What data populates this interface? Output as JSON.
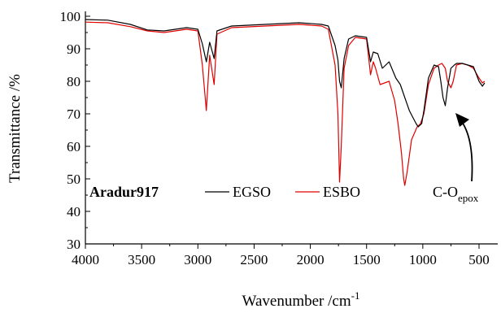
{
  "chart_data": {
    "type": "line",
    "title": "",
    "xlabel": "Wavenumber /cm",
    "xlabel_superscript": "-1",
    "ylabel": "Transmittance /%",
    "xlim": [
      4000,
      450
    ],
    "ylim": [
      30,
      100
    ],
    "x_reversed": true,
    "x_ticks": [
      4000,
      3500,
      3000,
      2500,
      2000,
      1500,
      1000,
      500
    ],
    "y_ticks": [
      30,
      40,
      50,
      60,
      70,
      80,
      90,
      100
    ],
    "grid": false,
    "legend": {
      "placement": "bottom-left",
      "title": "Aradur917",
      "entries": [
        "EGSO",
        "ESBO"
      ]
    },
    "annotation": {
      "text": "C-O",
      "subscript": "epox",
      "target": [
        800,
        72
      ]
    },
    "series": [
      {
        "name": "EGSO",
        "color": "#000000",
        "x": [
          4000,
          3800,
          3600,
          3450,
          3300,
          3100,
          3000,
          2960,
          2925,
          2895,
          2855,
          2830,
          2700,
          2400,
          2100,
          1900,
          1840,
          1780,
          1755,
          1740,
          1725,
          1700,
          1660,
          1600,
          1500,
          1465,
          1440,
          1400,
          1360,
          1300,
          1240,
          1200,
          1160,
          1120,
          1090,
          1060,
          1040,
          1010,
          990,
          950,
          900,
          860,
          840,
          820,
          800,
          780,
          750,
          720,
          700,
          650,
          600,
          550,
          500,
          470,
          450
        ],
        "y": [
          99.0,
          98.8,
          97.5,
          95.8,
          95.5,
          96.5,
          96.0,
          91.5,
          86.0,
          92.0,
          87.0,
          95.5,
          97.0,
          97.5,
          98.0,
          97.5,
          97.0,
          91.0,
          86.5,
          80.0,
          78.0,
          87.0,
          93.0,
          94.0,
          93.5,
          86.0,
          89.0,
          88.5,
          84.0,
          86.0,
          81.0,
          79.0,
          75.0,
          71.0,
          69.0,
          67.0,
          66.0,
          67.0,
          71.0,
          81.0,
          85.0,
          84.5,
          80.0,
          75.0,
          72.5,
          78.0,
          84.0,
          85.0,
          85.5,
          85.5,
          85.0,
          84.5,
          80.0,
          78.5,
          79.5
        ]
      },
      {
        "name": "ESBO",
        "color": "#e00000",
        "x": [
          4000,
          3800,
          3600,
          3450,
          3300,
          3100,
          3000,
          2960,
          2925,
          2895,
          2855,
          2830,
          2700,
          2400,
          2100,
          1900,
          1840,
          1780,
          1755,
          1740,
          1725,
          1700,
          1660,
          1600,
          1500,
          1465,
          1440,
          1420,
          1380,
          1300,
          1250,
          1220,
          1190,
          1170,
          1160,
          1140,
          1100,
          1050,
          1020,
          990,
          950,
          900,
          860,
          830,
          800,
          780,
          750,
          730,
          700,
          650,
          600,
          550,
          500,
          470,
          450
        ],
        "y": [
          98.2,
          98.0,
          96.8,
          95.5,
          95.0,
          96.0,
          95.5,
          85.0,
          71.0,
          88.0,
          79.0,
          94.5,
          96.5,
          97.0,
          97.5,
          97.0,
          96.0,
          85.0,
          70.0,
          49.0,
          60.0,
          84.0,
          91.0,
          93.5,
          93.0,
          82.0,
          86.0,
          84.0,
          79.0,
          80.0,
          74.0,
          67.0,
          58.0,
          50.0,
          48.0,
          52.0,
          62.0,
          66.0,
          67.0,
          70.0,
          79.0,
          84.0,
          85.0,
          85.5,
          84.0,
          80.0,
          78.0,
          80.0,
          85.0,
          85.5,
          85.0,
          84.0,
          81.0,
          79.5,
          80.0
        ]
      }
    ]
  }
}
